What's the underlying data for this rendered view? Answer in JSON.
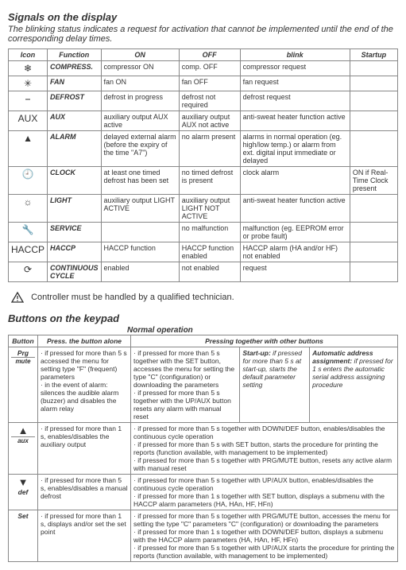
{
  "title1": "Signals on the display",
  "intro": "The blinking status indicates a request for activation that cannot be implemented until the end of the corresponding delay times.",
  "table1": {
    "headers": [
      "Icon",
      "Function",
      "ON",
      "OFF",
      "blink",
      "Startup"
    ],
    "rows": [
      {
        "icon": "❄",
        "func": "COMPRESS.",
        "on": "compressor ON",
        "off": "comp. OFF",
        "blink": "compressor request",
        "startup": ""
      },
      {
        "icon": "✳",
        "func": "FAN",
        "on": "fan ON",
        "off": "fan OFF",
        "blink": "fan request",
        "startup": ""
      },
      {
        "icon": "⎯",
        "func": "DEFROST",
        "on": "defrost in progress",
        "off": "defrost not required",
        "blink": "defrost request",
        "startup": ""
      },
      {
        "icon": "AUX",
        "func": "AUX",
        "on": "auxiliary output AUX active",
        "off": "auxiliary output AUX not active",
        "blink": "anti-sweat heater function active",
        "startup": ""
      },
      {
        "icon": "▲",
        "func": "ALARM",
        "on": "delayed external alarm (before the expiry of the time \"A7\")",
        "off": "no alarm present",
        "blink": "alarms in normal operation (eg. high/low temp.) or alarm from ext. digital input immediate or delayed",
        "startup": ""
      },
      {
        "icon": "🕘",
        "func": "CLOCK",
        "on": "at least one timed defrost has been set",
        "off": "no timed defrost is present",
        "blink": "clock alarm",
        "startup": "ON if Real-Time Clock present"
      },
      {
        "icon": "☼",
        "func": "LIGHT",
        "on": "auxiliary output LIGHT ACTIVE",
        "off": "auxiliary output LIGHT NOT ACTIVE",
        "blink": "anti-sweat heater function active",
        "startup": ""
      },
      {
        "icon": "🔧",
        "func": "SERVICE",
        "on": "",
        "off": "no malfunction",
        "blink": "malfunction (eg. EEPROM error or probe fault)",
        "startup": ""
      },
      {
        "icon": "HACCP",
        "func": "HACCP",
        "on": "HACCP function",
        "off": "HACCP function enabled",
        "blink": "HACCP alarm (HA and/or HF) not enabled",
        "startup": ""
      },
      {
        "icon": "⟳",
        "func": "CONTINUOUS CYCLE",
        "on": "enabled",
        "off": "not enabled",
        "blink": "request",
        "startup": ""
      }
    ]
  },
  "warning": "Controller must be handled by a qualified technician.",
  "title2": "Buttons on the keypad",
  "subtitle2": "Normal operation",
  "table2": {
    "h_button": "Button",
    "h_alone": "Press. the button alone",
    "h_together": "Pressing together with other buttons",
    "rows": [
      {
        "btn_icon": "",
        "btn_label": "Prg",
        "btn_sub": "mute",
        "alone": "· if pressed for more than 5 s accessed the menu for setting type \"F\" (frequent) parameters\n· in the event of alarm: silences the audible alarm (buzzer) and disables the alarm relay",
        "c1": "· if pressed for more than 5 s together with the SET button, accesses the menu for setting the type \"C\" (configuration) or downloading the parameters\n· if pressed for more than 5 s together with the UP/AUX button resets any alarm with manual reset",
        "c2": "Start-up: if pressed for more than 5 s at start-up, starts the default parameter setting",
        "c3": "Automatic address assignment: if pressed for 1 s enters the automatic serial address assigning procedure"
      },
      {
        "btn_icon": "▲",
        "btn_label": "",
        "btn_sub": "aux",
        "alone": "· if pressed for more than 1 s, enables/disables the auxiliary output",
        "full": "· if pressed for more than 5 s together with DOWN/DEF button, enables/disables the continuous cycle operation\n· if pressed for more than 5 s with SET button, starts the procedure for printing the reports (function available, with management to be implemented)\n· if pressed for more than 5 s together with PRG/MUTE button, resets any active alarm with manual reset"
      },
      {
        "btn_icon": "▼",
        "btn_label": "def",
        "btn_sub": "",
        "alone": "· if pressed for more than 5 s, enables/disables a manual defrost",
        "full": "· if pressed for more than 5 s together with UP/AUX button, enables/disables the continuous cycle operation\n· if pressed for more than 1 s together with SET button, displays a submenu with the HACCP alarm parameters (HA, HAn, HF, HFn)"
      },
      {
        "btn_icon": "",
        "btn_label": "Set",
        "btn_sub": "",
        "alone": "· if pressed for more than 1 s, displays and/or set the set point",
        "full": "· if pressed for more than 5 s together with PRG/MUTE button, accesses the menu for setting the type \"C\" parameters \"C\" (configuration) or downloading the parameters\n· if pressed for more than 1 s together with DOWN/DEF button, displays a submenu with the HACCP alarm parameters (HA, HAn, HF, HFn)\n· if pressed for more than 5 s together with UP/AUX starts the procedure for printing the reports (function available, with management to be implemented)"
      }
    ]
  }
}
